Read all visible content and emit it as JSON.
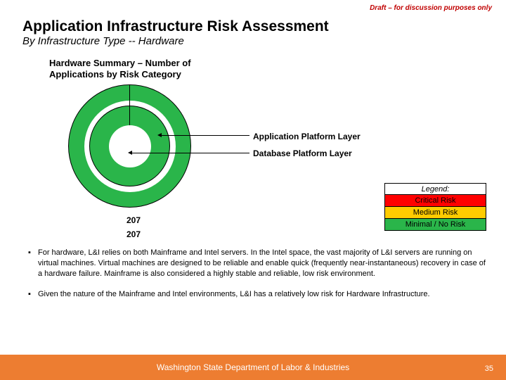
{
  "draft_label": "Draft – for discussion purposes only",
  "title": "Application Infrastructure Risk Assessment",
  "subtitle": "By Infrastructure Type -- Hardware",
  "chart": {
    "title": "Hardware Summary – Number of Applications by Risk Category",
    "type": "nested-donut",
    "ring_color": "#2ab54a",
    "background_color": "#ffffff",
    "outer_ring": {
      "value": 207,
      "label": "Application Platform Layer"
    },
    "inner_ring": {
      "value": 207,
      "label": "Database Platform Layer"
    }
  },
  "legend": {
    "title": "Legend:",
    "items": [
      {
        "label": "Critical Risk",
        "bg": "#ff0000",
        "fg": "#000000"
      },
      {
        "label": "Medium Risk",
        "bg": "#ffcc00",
        "fg": "#000000"
      },
      {
        "label": "Minimal / No Risk",
        "bg": "#2ab54a",
        "fg": "#000000"
      }
    ]
  },
  "bullets": [
    "For hardware, L&I relies on both Mainframe and Intel servers. In the Intel space, the vast majority of L&I servers are running on virtual machines. Virtual machines are designed to be reliable and enable quick (frequently near-instantaneous) recovery in case of a hardware failure. Mainframe is also considered a highly stable and reliable, low risk environment.",
    "Given the nature of the Mainframe and Intel environments, L&I has a relatively low risk for Hardware Infrastructure."
  ],
  "footer": {
    "text": "Washington State Department of Labor & Industries",
    "page": "35",
    "bar_color": "#ed7d31"
  }
}
